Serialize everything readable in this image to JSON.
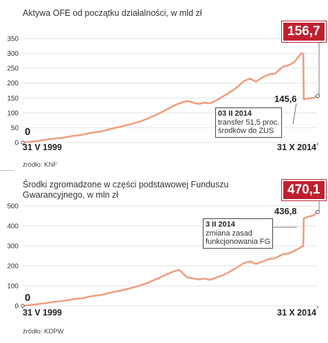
{
  "chart_data": [
    {
      "type": "line",
      "title": "Aktywa OFE od początku działalności, w mld zł",
      "source": "źródło: KNF",
      "ylim": [
        0,
        350
      ],
      "yticks": [
        "0",
        "50",
        "100",
        "150",
        "200",
        "250",
        "300",
        "350"
      ],
      "x_start_label": "31 V 1999",
      "x_end_label": "31 X 2014",
      "start_value": "0",
      "pre_event_value": "145,6",
      "final_value": "156,7",
      "annotation": {
        "date": "03 II 2014",
        "lines": [
          "transfer 51,5 proc.",
          "środków do ZUS"
        ]
      },
      "grid": true,
      "x": [
        1999.41,
        2000.0,
        2000.5,
        2001.0,
        2001.5,
        2002.0,
        2002.5,
        2003.0,
        2003.5,
        2004.0,
        2004.5,
        2005.0,
        2005.5,
        2006.0,
        2006.5,
        2007.0,
        2007.3,
        2007.6,
        2008.0,
        2008.3,
        2008.6,
        2008.9,
        2009.2,
        2009.5,
        2010.0,
        2010.5,
        2011.0,
        2011.3,
        2011.6,
        2011.9,
        2012.3,
        2012.6,
        2013.0,
        2013.3,
        2013.6,
        2013.9,
        2014.0,
        2014.08,
        2014.1,
        2014.3,
        2014.6,
        2014.83
      ],
      "values": [
        0,
        4,
        8,
        13,
        16,
        22,
        26,
        33,
        37,
        46,
        53,
        61,
        70,
        82,
        97,
        113,
        124,
        132,
        140,
        135,
        130,
        134,
        132,
        141,
        160,
        180,
        208,
        215,
        205,
        218,
        230,
        232,
        255,
        260,
        270,
        295,
        301,
        298,
        145.6,
        148,
        150,
        156.7
      ]
    },
    {
      "type": "line",
      "title": "Środki zgromadzone w części podstawowej Funduszu Gwarancyjnego, w mln zł",
      "source": "źródło: KDPW",
      "ylim": [
        0,
        500
      ],
      "yticks": [
        "0",
        "100",
        "200",
        "300",
        "400",
        "500"
      ],
      "x_start_label": "31 V 1999",
      "x_end_label": "31 X 2014",
      "start_value": "0",
      "post_event_value": "436,8",
      "final_value": "470,1",
      "annotation": {
        "date": "3 II 2014",
        "lines": [
          "zmiana zasad",
          "funkcjonowania FG"
        ]
      },
      "grid": true,
      "x": [
        1999.41,
        2000.0,
        2000.5,
        2001.0,
        2001.5,
        2002.0,
        2002.5,
        2003.0,
        2003.5,
        2004.0,
        2004.5,
        2005.0,
        2005.5,
        2006.0,
        2006.5,
        2007.0,
        2007.3,
        2007.6,
        2008.0,
        2008.3,
        2008.6,
        2008.9,
        2009.2,
        2009.5,
        2010.0,
        2010.5,
        2011.0,
        2011.3,
        2011.6,
        2011.9,
        2012.3,
        2012.6,
        2013.0,
        2013.3,
        2013.6,
        2013.9,
        2014.0,
        2014.08,
        2014.1,
        2014.3,
        2014.6,
        2014.83
      ],
      "values": [
        0,
        6,
        12,
        19,
        24,
        32,
        38,
        48,
        54,
        66,
        76,
        87,
        100,
        117,
        138,
        160,
        172,
        180,
        142,
        138,
        132,
        136,
        130,
        140,
        158,
        185,
        215,
        222,
        210,
        220,
        235,
        238,
        258,
        262,
        275,
        290,
        296,
        300,
        436.8,
        445,
        452,
        470.1
      ]
    }
  ]
}
